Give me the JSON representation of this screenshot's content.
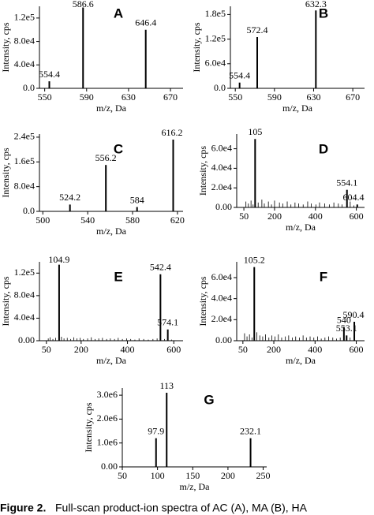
{
  "chart_data": [
    {
      "type": "stem",
      "panel": "A",
      "ylabel": "Intensity, cps",
      "xlabel": "m/z, Da",
      "color": "#000000",
      "xlim": [
        545,
        682
      ],
      "xticks": [
        550,
        590,
        630,
        670
      ],
      "ylim": [
        0,
        140000
      ],
      "yticks": [
        {
          "value": 0,
          "label": "0.0"
        },
        {
          "value": 40000,
          "label": "4.0e4"
        },
        {
          "value": 80000,
          "label": "8.0e4"
        },
        {
          "value": 120000,
          "label": "1.2e5"
        }
      ],
      "x": [
        554.4,
        586.6,
        646.4
      ],
      "values": [
        12000,
        138000,
        100000
      ],
      "minor_x": [],
      "minor_values": []
    },
    {
      "type": "stem",
      "panel": "B",
      "ylabel": "Intensity, cps",
      "xlabel": "m/z, Da",
      "color": "#000000",
      "xlim": [
        545,
        682
      ],
      "xticks": [
        550,
        590,
        630,
        670
      ],
      "ylim": [
        0,
        200000
      ],
      "yticks": [
        {
          "value": 0,
          "label": "0.0"
        },
        {
          "value": 60000,
          "label": "6.0e4"
        },
        {
          "value": 120000,
          "label": "1.2e5"
        },
        {
          "value": 180000,
          "label": "1.8e5"
        }
      ],
      "x": [
        554.4,
        572.4,
        632.3
      ],
      "values": [
        14000,
        125000,
        190000
      ],
      "minor_x": [],
      "minor_values": []
    },
    {
      "type": "stem",
      "panel": "C",
      "ylabel": "Intensity, cps",
      "xlabel": "m/z, Da",
      "color": "#000000",
      "xlim": [
        497,
        625
      ],
      "xticks": [
        500,
        540,
        580,
        620
      ],
      "ylim": [
        0,
        250000
      ],
      "yticks": [
        {
          "value": 0,
          "label": "0.0"
        },
        {
          "value": 80000,
          "label": "8.0e4"
        },
        {
          "value": 160000,
          "label": "1.6e5"
        },
        {
          "value": 240000,
          "label": "2.4e5"
        }
      ],
      "x": [
        524.2,
        556.2,
        584.0,
        616.2
      ],
      "values": [
        22000,
        150000,
        14000,
        232000
      ],
      "minor_x": [],
      "minor_values": []
    },
    {
      "type": "stem",
      "panel": "D",
      "ylabel": "Intensity, cps",
      "xlabel": "m/z, Da",
      "color": "#000000",
      "xlim": [
        15,
        640
      ],
      "xticks": [
        50,
        200,
        400,
        600
      ],
      "ylim": [
        0,
        75000
      ],
      "yticks": [
        {
          "value": 0,
          "label": "0.00"
        },
        {
          "value": 20000,
          "label": "2.0e4"
        },
        {
          "value": 40000,
          "label": "4.0e4"
        },
        {
          "value": 60000,
          "label": "6.0e4"
        }
      ],
      "x": [
        105.0,
        554.1,
        604.4
      ],
      "values": [
        70000,
        18000,
        3000
      ],
      "minor_x": [
        60,
        72,
        85,
        95,
        120,
        138,
        150,
        170,
        185,
        200,
        224,
        240,
        262,
        280,
        300,
        318,
        340,
        362,
        380,
        402,
        420,
        445,
        468,
        490,
        512,
        530,
        570,
        588
      ],
      "minor_values": [
        6000,
        4000,
        7000,
        3000,
        5000,
        8000,
        4000,
        6000,
        3000,
        7000,
        5000,
        4000,
        6000,
        3000,
        5000,
        4000,
        3000,
        6000,
        4000,
        3000,
        5000,
        4000,
        3000,
        5000,
        4000,
        3000,
        6000,
        2000
      ]
    },
    {
      "type": "stem",
      "panel": "E",
      "ylabel": "Intensity, cps",
      "xlabel": "m/z, Da",
      "color": "#000000",
      "xlim": [
        20,
        640
      ],
      "xticks": [
        50,
        200,
        400,
        600
      ],
      "ylim": [
        0,
        140000
      ],
      "yticks": [
        {
          "value": 0,
          "label": "0.00"
        },
        {
          "value": 40000,
          "label": "4.0e4"
        },
        {
          "value": 80000,
          "label": "8.0e4"
        },
        {
          "value": 120000,
          "label": "1.2e5"
        }
      ],
      "x": [
        104.9,
        542.4,
        574.1
      ],
      "values": [
        135000,
        118000,
        20000
      ],
      "minor_x": [
        58,
        66,
        78,
        90,
        115,
        126,
        140,
        155,
        168,
        182,
        196,
        210,
        228,
        244,
        260,
        276,
        292,
        310,
        326,
        344,
        360,
        378,
        396,
        414,
        432,
        450,
        470,
        490,
        510,
        528,
        560,
        590
      ],
      "minor_values": [
        4000,
        6000,
        3000,
        5000,
        7000,
        4000,
        5000,
        3000,
        6000,
        4000,
        5000,
        3000,
        4000,
        6000,
        3000,
        4000,
        5000,
        3000,
        4000,
        3000,
        5000,
        3000,
        4000,
        3000,
        2000,
        4000,
        3000,
        2000,
        3000,
        4000,
        3000,
        2000
      ]
    },
    {
      "type": "stem",
      "panel": "F",
      "ylabel": "Intensity, cps",
      "xlabel": "m/z, Da",
      "color": "#000000",
      "xlim": [
        20,
        640
      ],
      "xticks": [
        50,
        200,
        400,
        600
      ],
      "ylim": [
        0,
        75000
      ],
      "yticks": [
        {
          "value": 0,
          "label": "0.00"
        },
        {
          "value": 20000,
          "label": "2.0e4"
        },
        {
          "value": 40000,
          "label": "4.0e4"
        },
        {
          "value": 60000,
          "label": "6.0e4"
        }
      ],
      "x": [
        105.2,
        540.0,
        553.1,
        590.4
      ],
      "values": [
        70000,
        13000,
        5000,
        18000
      ],
      "minor_x": [
        58,
        70,
        82,
        94,
        118,
        132,
        146,
        160,
        176,
        190,
        206,
        222,
        238,
        256,
        272,
        290,
        306,
        324,
        342,
        358,
        376,
        394,
        412,
        430,
        448,
        466,
        486,
        504,
        522,
        570
      ],
      "minor_values": [
        7000,
        4000,
        6000,
        3000,
        8000,
        5000,
        4000,
        6000,
        3000,
        5000,
        4000,
        6000,
        3000,
        4000,
        5000,
        3000,
        4000,
        3000,
        5000,
        3000,
        4000,
        3000,
        4000,
        2000,
        3000,
        4000,
        3000,
        2000,
        3000,
        3000
      ]
    },
    {
      "type": "stem",
      "panel": "G",
      "ylabel": "Intensity, cps",
      "xlabel": "m/z, Da",
      "color": "#000000",
      "xlim": [
        50,
        255
      ],
      "xticks": [
        50,
        100,
        150,
        200,
        250
      ],
      "ylim": [
        0,
        3300000
      ],
      "yticks": [
        {
          "value": 0,
          "label": "0.00"
        },
        {
          "value": 1000000,
          "label": "1.0e6"
        },
        {
          "value": 2000000,
          "label": "2.0e6"
        },
        {
          "value": 3000000,
          "label": "3.0e6"
        }
      ],
      "x": [
        97.9,
        113.0,
        232.1
      ],
      "values": [
        1200000,
        3100000,
        1200000
      ],
      "minor_x": [],
      "minor_values": []
    }
  ],
  "caption": {
    "label": "Figure 2.",
    "text": "Full-scan product-ion spectra of AC (A), MA (B), HA"
  }
}
